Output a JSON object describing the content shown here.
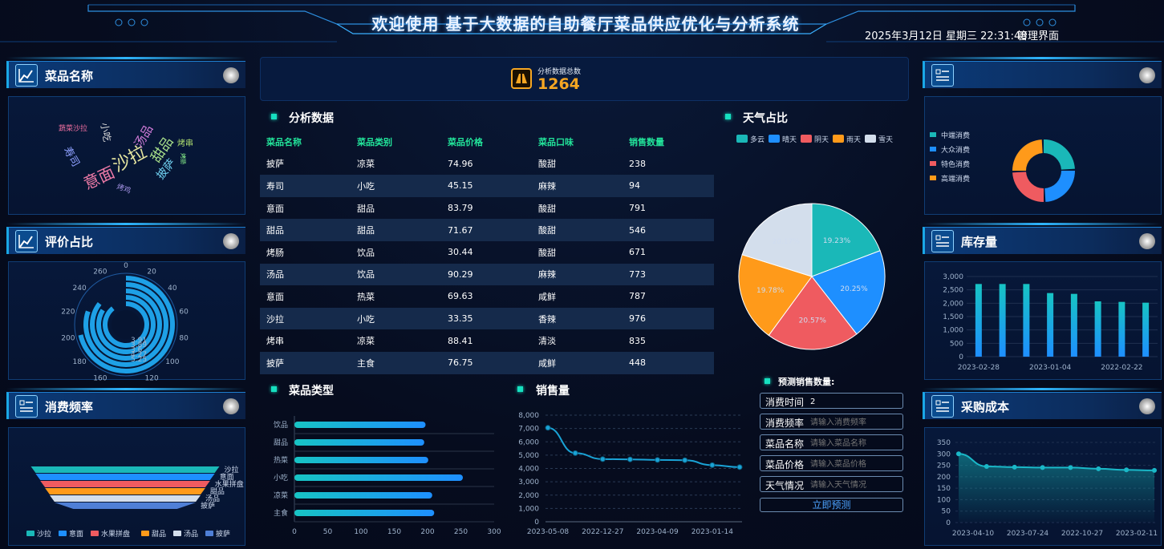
{
  "header": {
    "title": "欢迎使用 基于大数据的自助餐厅菜品供应优化与分析系统",
    "datetime": "2025年3月12日 星期三 22:31:48",
    "admin": "管理界面"
  },
  "panels": {
    "dish_names": "菜品名称",
    "rating_ratio": "评价占比",
    "consume_freq": "消费频率",
    "consume_level": "",
    "stock": "库存量",
    "purchase_cost": "采购成本"
  },
  "total": {
    "label": "分析数据总数",
    "value": "1264"
  },
  "analysis": {
    "title": "分析数据",
    "headers": [
      "菜品名称",
      "菜品类别",
      "菜品价格",
      "菜品口味",
      "销售数量"
    ],
    "rows": [
      [
        "披萨",
        "凉菜",
        "74.96",
        "酸甜",
        "238"
      ],
      [
        "寿司",
        "小吃",
        "45.15",
        "麻辣",
        "94"
      ],
      [
        "意面",
        "甜品",
        "83.79",
        "酸甜",
        "791"
      ],
      [
        "甜品",
        "甜品",
        "71.67",
        "酸甜",
        "546"
      ],
      [
        "烤肠",
        "饮品",
        "30.44",
        "酸甜",
        "671"
      ],
      [
        "汤品",
        "饮品",
        "90.29",
        "麻辣",
        "773"
      ],
      [
        "意面",
        "热菜",
        "69.63",
        "咸鲜",
        "787"
      ],
      [
        "沙拉",
        "小吃",
        "33.35",
        "香辣",
        "976"
      ],
      [
        "烤串",
        "凉菜",
        "88.41",
        "清淡",
        "835"
      ],
      [
        "披萨",
        "主食",
        "76.75",
        "咸鲜",
        "448"
      ]
    ]
  },
  "wordcloud": [
    {
      "t": "沙拉",
      "c": "#e6e6a0"
    },
    {
      "t": "意面",
      "c": "#ef7ba8"
    },
    {
      "t": "甜品",
      "c": "#a8e08a"
    },
    {
      "t": "披萨",
      "c": "#6fd0f0"
    },
    {
      "t": "汤品",
      "c": "#d07bd8"
    },
    {
      "t": "寿司",
      "c": "#8ea0ff"
    },
    {
      "t": "小吃",
      "c": "#d8d8d8"
    },
    {
      "t": "烤串",
      "c": "#b0e070"
    },
    {
      "t": "蔬菜沙拉",
      "c": "#f06fa0"
    },
    {
      "t": "烤鸡",
      "c": "#a090e0"
    },
    {
      "t": "烤肠",
      "c": "#90ff90"
    }
  ],
  "weather": {
    "title": "天气占比",
    "chart_data": {
      "type": "pie",
      "labels": [
        "多云",
        "晴天",
        "阴天",
        "雨天",
        "雪天"
      ],
      "values": [
        19.23,
        20.25,
        20.57,
        19.78,
        20.17
      ],
      "colors": [
        "#1ab8b8",
        "#1e8fff",
        "#ef5b60",
        "#ff9a1a",
        "#d3deec"
      ]
    }
  },
  "dish_type": {
    "title": "菜品类型",
    "chart_data": {
      "type": "bar",
      "categories": [
        "饮品",
        "甜品",
        "热菜",
        "小吃",
        "凉菜",
        "主食"
      ],
      "values": [
        197,
        195,
        201,
        253,
        207,
        210
      ],
      "xlim": [
        0,
        300
      ],
      "xticks": [
        "0",
        "50",
        "100",
        "150",
        "200",
        "250",
        "300"
      ]
    }
  },
  "sales": {
    "title": "销售量",
    "chart_data": {
      "type": "line",
      "x": [
        "2023-05-08",
        "",
        "2022-12-27",
        "",
        "2023-04-09",
        "",
        "2023-01-14",
        ""
      ],
      "values": [
        7050,
        5150,
        4700,
        4680,
        4640,
        4620,
        4250,
        4100
      ],
      "ylim": [
        0,
        8000
      ],
      "yticks": [
        "0",
        "1,000",
        "2,000",
        "3,000",
        "4,000",
        "5,000",
        "6,000",
        "7,000",
        "8,000"
      ]
    }
  },
  "consume_level_chart": {
    "chart_data": {
      "type": "pie",
      "labels": [
        "中端消费",
        "大众消费",
        "特色消费",
        "高端消费"
      ],
      "values": [
        25,
        25,
        25,
        25
      ],
      "colors": [
        "#1ab8b8",
        "#1e8fff",
        "#ef5b60",
        "#ff9a1a"
      ]
    }
  },
  "stock_chart": {
    "chart_data": {
      "type": "bar",
      "values": [
        2720,
        2720,
        2720,
        2380,
        2350,
        2070,
        2050,
        2020
      ],
      "xticks": [
        "2023-02-28",
        "2023-01-04",
        "2022-02-22"
      ],
      "ylim": [
        0,
        3000
      ],
      "yticks": [
        "0",
        "500",
        "1,000",
        "1,500",
        "2,000",
        "2,500",
        "3,000"
      ]
    }
  },
  "cost_chart": {
    "chart_data": {
      "type": "area",
      "values": [
        300,
        245,
        242,
        240,
        240,
        235,
        230,
        228
      ],
      "xticks": [
        "2023-04-10",
        "2023-07-24",
        "2022-10-27",
        "2023-02-11"
      ],
      "ylim": [
        0,
        350
      ],
      "yticks": [
        "0",
        "50",
        "100",
        "150",
        "200",
        "250",
        "300",
        "350"
      ]
    }
  },
  "rating_chart": {
    "chart_data": {
      "type": "polar-bar",
      "angle_ticks": [
        "0",
        "20",
        "40",
        "60",
        "80",
        "100",
        "120",
        "140",
        "160",
        "180",
        "200",
        "220",
        "240",
        "260"
      ],
      "labels": [
        "3.91",
        "3.89",
        "3.6",
        "4.27",
        "5.25"
      ],
      "values": [
        200,
        225,
        240,
        235,
        250
      ]
    }
  },
  "freq_chart": {
    "chart_data": {
      "type": "funnel",
      "labels": [
        "沙拉",
        "意面",
        "水果拼盘",
        "甜品",
        "汤品",
        "披萨"
      ],
      "colors": [
        "#1ab8b8",
        "#1e8fff",
        "#ef5b60",
        "#ff9a1a",
        "#d3deec",
        "#4f7fd6"
      ],
      "values": [
        100,
        95,
        90,
        85,
        80,
        75
      ]
    }
  },
  "predict": {
    "title": "预测销售数量:",
    "fields": [
      {
        "label": "消费时间",
        "value": "2",
        "ph": ""
      },
      {
        "label": "消费频率",
        "value": "",
        "ph": "请输入消费频率"
      },
      {
        "label": "菜品名称",
        "value": "",
        "ph": "请输入菜品名称"
      },
      {
        "label": "菜品价格",
        "value": "",
        "ph": "请输入菜品价格"
      },
      {
        "label": "天气情况",
        "value": "",
        "ph": "请输入天气情况"
      }
    ],
    "button": "立即预测"
  }
}
